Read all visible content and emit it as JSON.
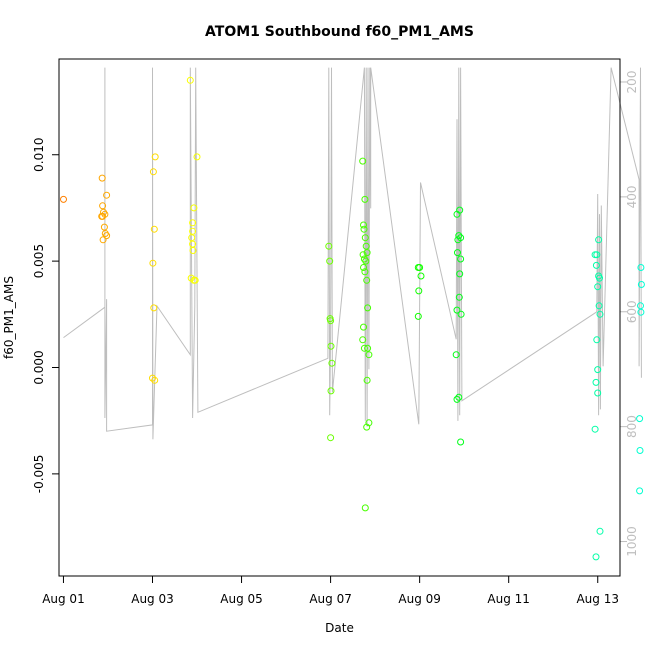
{
  "chart_data": {
    "type": "scatter",
    "title": "ATOM1 Southbound f60_PM1_AMS",
    "xlabel": "Date",
    "ylabel": "f60_PM1_AMS",
    "xlim": [
      -0.1,
      12.5
    ],
    "ylim": [
      -0.0098,
      0.0145
    ],
    "x_ticks": [
      {
        "v": 0,
        "label": "Aug 01"
      },
      {
        "v": 2,
        "label": "Aug 03"
      },
      {
        "v": 4,
        "label": "Aug 05"
      },
      {
        "v": 6,
        "label": "Aug 07"
      },
      {
        "v": 8,
        "label": "Aug 09"
      },
      {
        "v": 10,
        "label": "Aug 11"
      },
      {
        "v": 12,
        "label": "Aug 13"
      }
    ],
    "y_ticks": [
      {
        "v": -0.005,
        "label": "-0.005"
      },
      {
        "v": 0.0,
        "label": "0.000"
      },
      {
        "v": 0.005,
        "label": "0.005"
      },
      {
        "v": 0.01,
        "label": "0.010"
      }
    ],
    "y2_lim": [
      1060,
      160
    ],
    "y2_ticks": [
      {
        "v": 200,
        "label": "200"
      },
      {
        "v": 400,
        "label": "400"
      },
      {
        "v": 600,
        "label": "600"
      },
      {
        "v": 800,
        "label": "800"
      },
      {
        "v": 1000,
        "label": "1000"
      }
    ],
    "points": [
      [
        0.0,
        0.0079
      ],
      [
        0.87,
        0.0089
      ],
      [
        0.88,
        0.0076
      ],
      [
        0.9,
        0.0073
      ],
      [
        0.88,
        0.0071
      ],
      [
        0.93,
        0.0072
      ],
      [
        0.92,
        0.0066
      ],
      [
        0.97,
        0.0081
      ],
      [
        0.94,
        0.0063
      ],
      [
        0.97,
        0.0062
      ],
      [
        0.89,
        0.006
      ],
      [
        0.86,
        0.0071
      ],
      [
        2.02,
        0.0092
      ],
      [
        2.06,
        0.0099
      ],
      [
        2.04,
        0.0065
      ],
      [
        2.01,
        0.0049
      ],
      [
        2.03,
        0.0028
      ],
      [
        2.0,
        -0.0005
      ],
      [
        2.05,
        -0.0006
      ],
      [
        2.85,
        0.0135
      ],
      [
        2.93,
        0.0075
      ],
      [
        2.9,
        0.0068
      ],
      [
        2.9,
        0.0064
      ],
      [
        2.88,
        0.0061
      ],
      [
        2.9,
        0.0058
      ],
      [
        2.91,
        0.0055
      ],
      [
        2.87,
        0.0042
      ],
      [
        2.93,
        0.0041
      ],
      [
        2.96,
        0.0041
      ],
      [
        3.0,
        0.0099
      ],
      [
        5.96,
        0.0057
      ],
      [
        5.98,
        0.005
      ],
      [
        5.99,
        0.0023
      ],
      [
        6.0,
        0.0022
      ],
      [
        6.01,
        0.001
      ],
      [
        6.03,
        0.0002
      ],
      [
        6.01,
        -0.0011
      ],
      [
        6.0,
        -0.0033
      ],
      [
        6.72,
        0.0097
      ],
      [
        6.74,
        0.0067
      ],
      [
        6.77,
        0.0079
      ],
      [
        6.75,
        0.0065
      ],
      [
        6.78,
        0.0061
      ],
      [
        6.8,
        0.0057
      ],
      [
        6.82,
        0.0054
      ],
      [
        6.73,
        0.0053
      ],
      [
        6.76,
        0.0051
      ],
      [
        6.79,
        0.005
      ],
      [
        6.74,
        0.0047
      ],
      [
        6.77,
        0.0045
      ],
      [
        6.81,
        0.0041
      ],
      [
        6.83,
        0.0028
      ],
      [
        6.74,
        0.0019
      ],
      [
        6.72,
        0.0013
      ],
      [
        6.76,
        0.0009
      ],
      [
        6.83,
        0.0009
      ],
      [
        6.86,
        0.0006
      ],
      [
        6.82,
        -0.0006
      ],
      [
        6.81,
        -0.0028
      ],
      [
        6.86,
        -0.0026
      ],
      [
        6.78,
        -0.0066
      ],
      [
        7.97,
        0.0047
      ],
      [
        8.0,
        0.0047
      ],
      [
        8.03,
        0.0043
      ],
      [
        7.98,
        0.0036
      ],
      [
        7.97,
        0.0024
      ],
      [
        8.84,
        0.0072
      ],
      [
        8.9,
        0.0074
      ],
      [
        8.88,
        0.0062
      ],
      [
        8.92,
        0.0061
      ],
      [
        8.86,
        0.006
      ],
      [
        8.85,
        0.0054
      ],
      [
        8.92,
        0.0051
      ],
      [
        8.9,
        0.0044
      ],
      [
        8.89,
        0.0033
      ],
      [
        8.84,
        0.0027
      ],
      [
        8.93,
        0.0025
      ],
      [
        8.82,
        0.0006
      ],
      [
        8.84,
        -0.0015
      ],
      [
        8.88,
        -0.0014
      ],
      [
        8.92,
        -0.0035
      ],
      [
        11.94,
        0.0053
      ],
      [
        11.98,
        0.0053
      ],
      [
        12.02,
        0.006
      ],
      [
        11.97,
        0.0048
      ],
      [
        12.02,
        0.0043
      ],
      [
        12.04,
        0.0042
      ],
      [
        12.0,
        0.0038
      ],
      [
        12.03,
        0.0029
      ],
      [
        12.05,
        0.0025
      ],
      [
        11.98,
        0.0013
      ],
      [
        12.0,
        -0.0001
      ],
      [
        11.96,
        -0.0007
      ],
      [
        12.0,
        -0.0012
      ],
      [
        11.94,
        -0.0029
      ],
      [
        12.05,
        -0.0077
      ],
      [
        11.96,
        -0.0089
      ],
      [
        12.97,
        0.0047
      ],
      [
        12.98,
        0.0039
      ],
      [
        12.96,
        0.0029
      ],
      [
        12.97,
        0.0026
      ],
      [
        12.94,
        -0.0024
      ],
      [
        12.95,
        -0.0039
      ],
      [
        12.94,
        -0.0058
      ]
    ],
    "secondary_line": [
      [
        0.0,
        645
      ],
      [
        0.93,
        592
      ],
      [
        0.93,
        175
      ],
      [
        0.93,
        785
      ],
      [
        0.97,
        578
      ],
      [
        0.97,
        808
      ],
      [
        2.0,
        797
      ],
      [
        2.0,
        175
      ],
      [
        2.01,
        822
      ],
      [
        2.1,
        590
      ],
      [
        2.85,
        675
      ],
      [
        2.85,
        175
      ],
      [
        2.9,
        785
      ],
      [
        2.95,
        590
      ],
      [
        2.97,
        175
      ],
      [
        3.02,
        775
      ],
      [
        5.94,
        681
      ],
      [
        5.96,
        175
      ],
      [
        5.98,
        780
      ],
      [
        6.0,
        640
      ],
      [
        6.02,
        175
      ],
      [
        6.04,
        740
      ],
      [
        6.76,
        175
      ],
      [
        6.78,
        790
      ],
      [
        6.8,
        175
      ],
      [
        6.82,
        800
      ],
      [
        6.84,
        175
      ],
      [
        6.86,
        700
      ],
      [
        6.88,
        175
      ],
      [
        6.9,
        420
      ],
      [
        6.9,
        175
      ],
      [
        7.98,
        796
      ],
      [
        8.02,
        375
      ],
      [
        8.82,
        648
      ],
      [
        8.84,
        265
      ],
      [
        8.86,
        790
      ],
      [
        8.88,
        175
      ],
      [
        8.9,
        780
      ],
      [
        8.92,
        175
      ],
      [
        8.95,
        755
      ],
      [
        11.98,
        600
      ],
      [
        12.0,
        395
      ],
      [
        12.02,
        780
      ],
      [
        12.04,
        430
      ],
      [
        12.06,
        770
      ],
      [
        12.08,
        415
      ],
      [
        12.12,
        695
      ],
      [
        12.3,
        175
      ],
      [
        12.93,
        370
      ],
      [
        12.93,
        695
      ],
      [
        12.96,
        175
      ],
      [
        12.98,
        715
      ]
    ]
  }
}
